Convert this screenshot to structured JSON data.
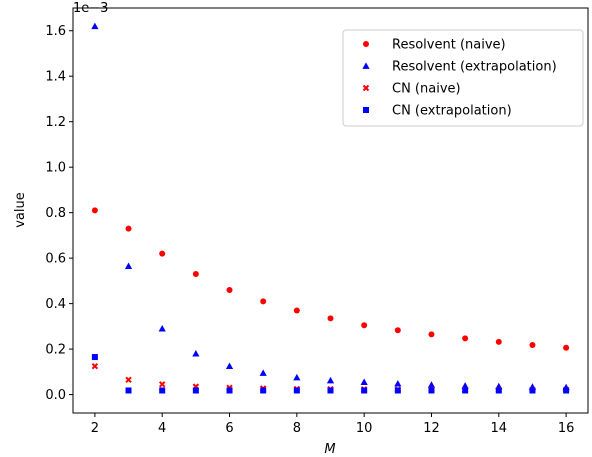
{
  "chart_data": {
    "type": "scatter",
    "xlabel": "M",
    "ylabel": "value",
    "scale_label": "1e−3",
    "xlim": [
      1.35,
      16.65
    ],
    "ylim": [
      -0.081,
      1.7
    ],
    "xticks": [
      2,
      4,
      6,
      8,
      10,
      12,
      14,
      16
    ],
    "xtick_labels": [
      "2",
      "4",
      "6",
      "8",
      "10",
      "12",
      "14",
      "16"
    ],
    "yticks": [
      0.0,
      0.2,
      0.4,
      0.6,
      0.8,
      1.0,
      1.2,
      1.4,
      1.6
    ],
    "ytick_labels": [
      "0.0",
      "0.2",
      "0.4",
      "0.6",
      "0.8",
      "1.0",
      "1.2",
      "1.4",
      "1.6"
    ],
    "grid": false,
    "legend_position": "top-right",
    "x": [
      2,
      3,
      4,
      5,
      6,
      7,
      8,
      9,
      10,
      11,
      12,
      13,
      14,
      15,
      16
    ],
    "series": [
      {
        "name": "Resolvent (naive)",
        "color": "#ff0000",
        "marker": "circle",
        "values": [
          0.81,
          0.73,
          0.62,
          0.53,
          0.46,
          0.41,
          0.37,
          0.335,
          0.305,
          0.283,
          0.265,
          0.247,
          0.232,
          0.218,
          0.206
        ]
      },
      {
        "name": "Resolvent (extrapolation)",
        "color": "#0000ff",
        "marker": "triangle",
        "values": [
          1.62,
          0.565,
          0.29,
          0.18,
          0.125,
          0.095,
          0.075,
          0.062,
          0.055,
          0.048,
          0.043,
          0.039,
          0.036,
          0.034,
          0.032
        ]
      },
      {
        "name": "CN (naive)",
        "color": "#ff0000",
        "marker": "x",
        "values": [
          0.125,
          0.065,
          0.045,
          0.035,
          0.03,
          0.027,
          0.025,
          0.024,
          0.023,
          0.022,
          0.022,
          0.021,
          0.021,
          0.021,
          0.021
        ]
      },
      {
        "name": "CN (extrapolation)",
        "color": "#0000ff",
        "marker": "square",
        "values": [
          0.165,
          0.018,
          0.018,
          0.018,
          0.018,
          0.018,
          0.018,
          0.018,
          0.018,
          0.018,
          0.018,
          0.018,
          0.018,
          0.018,
          0.018
        ]
      }
    ]
  }
}
